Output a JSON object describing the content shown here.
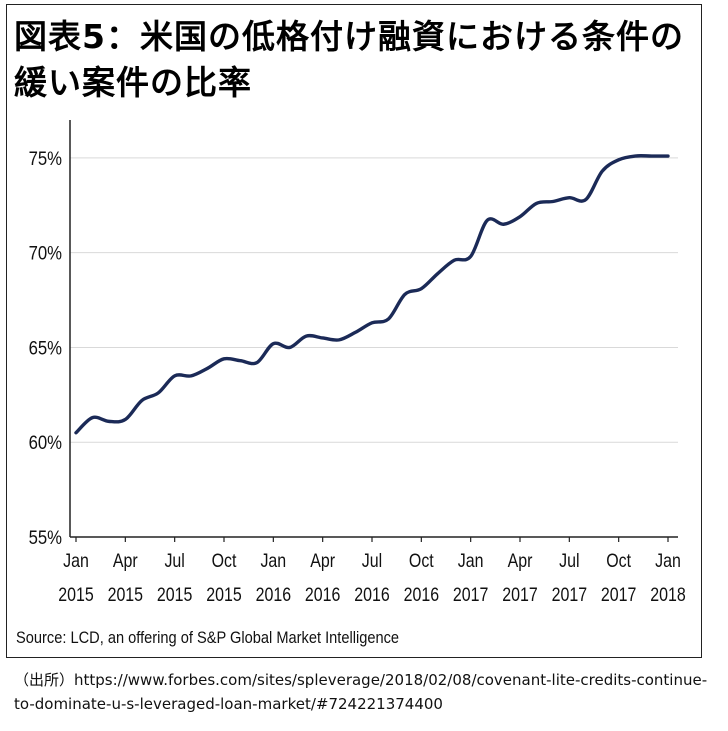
{
  "title": "図表5：米国の低格付け融資における条件の緩い案件の比率",
  "source": "Source: LCD, an offering of S&P Global Market Intelligence",
  "citation": {
    "prefix": "（出所）",
    "url": "https://www.forbes.com/sites/spleverage/2018/02/08/covenant-lite-credits-continue-to-dominate-u-s-leveraged-loan-market/#724221374400"
  },
  "colors": {
    "line": "#1b2a57",
    "grid": "#d9d9d9",
    "axis": "#222222"
  },
  "chart_data": {
    "type": "line",
    "title": "",
    "xlabel": "",
    "ylabel": "",
    "ylim": [
      55,
      77
    ],
    "y_ticks": [
      55,
      60,
      65,
      70,
      75
    ],
    "y_tick_labels": [
      "55%",
      "60%",
      "65%",
      "70%",
      "75%"
    ],
    "x_ticks": [
      {
        "month": "Jan",
        "year": "2015"
      },
      {
        "month": "Apr",
        "year": "2015"
      },
      {
        "month": "Jul",
        "year": "2015"
      },
      {
        "month": "Oct",
        "year": "2015"
      },
      {
        "month": "Jan",
        "year": "2016"
      },
      {
        "month": "Apr",
        "year": "2016"
      },
      {
        "month": "Jul",
        "year": "2016"
      },
      {
        "month": "Oct",
        "year": "2016"
      },
      {
        "month": "Jan",
        "year": "2017"
      },
      {
        "month": "Apr",
        "year": "2017"
      },
      {
        "month": "Jul",
        "year": "2017"
      },
      {
        "month": "Oct",
        "year": "2017"
      },
      {
        "month": "Jan",
        "year": "2018"
      }
    ],
    "grid": true,
    "series": [
      {
        "x": [
          "2015-01",
          "2015-02",
          "2015-03",
          "2015-04",
          "2015-05",
          "2015-06",
          "2015-07",
          "2015-08",
          "2015-09",
          "2015-10",
          "2015-11",
          "2015-12",
          "2016-01",
          "2016-02",
          "2016-03",
          "2016-04",
          "2016-05",
          "2016-06",
          "2016-07",
          "2016-08",
          "2016-09",
          "2016-10",
          "2016-11",
          "2016-12",
          "2017-01",
          "2017-02",
          "2017-03",
          "2017-04",
          "2017-05",
          "2017-06",
          "2017-07",
          "2017-08",
          "2017-09",
          "2017-10",
          "2017-11",
          "2017-12",
          "2018-01"
        ],
        "values": [
          60.5,
          61.3,
          61.1,
          61.2,
          62.2,
          62.6,
          63.5,
          63.5,
          63.9,
          64.4,
          64.3,
          64.2,
          65.2,
          65.0,
          65.6,
          65.5,
          65.4,
          65.8,
          66.3,
          66.5,
          67.8,
          68.1,
          68.9,
          69.6,
          69.8,
          71.7,
          71.5,
          71.9,
          72.6,
          72.7,
          72.9,
          72.8,
          74.3,
          74.9,
          75.1,
          75.1,
          75.1
        ]
      }
    ]
  }
}
